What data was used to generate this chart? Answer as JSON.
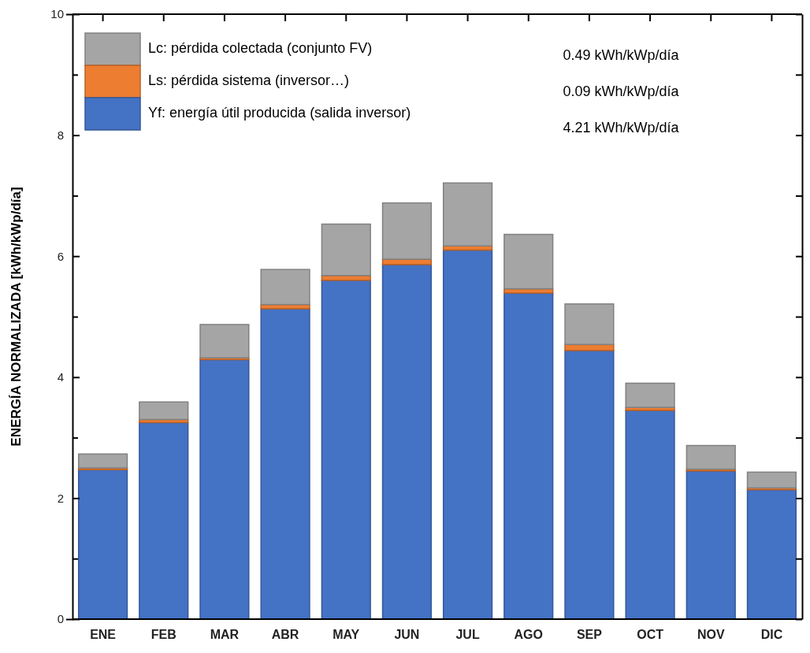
{
  "chart_data": {
    "type": "bar",
    "stacked": true,
    "ylabel": "ENERGÍA NORMALIZADA [kWh/kWp/día]",
    "categories": [
      "ENE",
      "FEB",
      "MAR",
      "ABR",
      "MAY",
      "JUN",
      "JUL",
      "AGO",
      "SEP",
      "OCT",
      "NOV",
      "DIC"
    ],
    "series": [
      {
        "name": "Yf: energía útil producida (salida inversor)",
        "color": "#4472c4",
        "values": [
          2.47,
          3.25,
          4.29,
          5.13,
          5.6,
          5.86,
          6.1,
          5.39,
          4.44,
          3.45,
          2.45,
          2.14
        ]
      },
      {
        "name": "Ls: pérdida sistema (inversor…)",
        "color": "#ed7d31",
        "values": [
          0.03,
          0.05,
          0.03,
          0.07,
          0.08,
          0.09,
          0.07,
          0.07,
          0.1,
          0.05,
          0.03,
          0.03
        ]
      },
      {
        "name": "Lc: pérdida colectada (conjunto FV)",
        "color": "#a5a5a5",
        "values": [
          0.23,
          0.29,
          0.55,
          0.58,
          0.85,
          0.93,
          1.04,
          0.9,
          0.67,
          0.4,
          0.39,
          0.26
        ]
      }
    ],
    "ylim": [
      0,
      10
    ],
    "yticks": [
      0,
      {
        "value": 1,
        "label": null
      },
      2,
      {
        "value": 3,
        "label": null
      },
      4,
      {
        "value": 5,
        "label": null
      },
      6,
      {
        "value": 7,
        "label": null
      },
      8,
      {
        "value": 9,
        "label": null
      },
      10
    ],
    "annotations": [
      "0.49 kWh/kWp/día",
      "0.09 kWh/kWp/día",
      "4.21 kWh/kWp/día"
    ],
    "legend": "top left",
    "grid": false
  }
}
